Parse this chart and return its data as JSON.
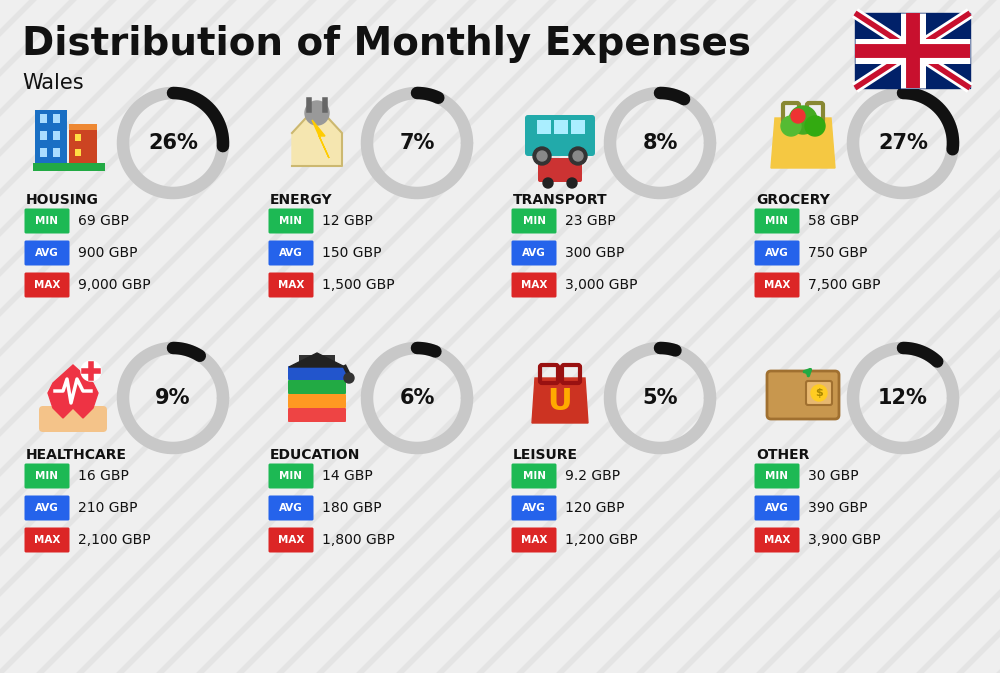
{
  "title": "Distribution of Monthly Expenses",
  "subtitle": "Wales",
  "background_color": "#efefef",
  "categories": [
    {
      "name": "HOUSING",
      "percent": 26,
      "min": "69 GBP",
      "avg": "900 GBP",
      "max": "9,000 GBP",
      "col": 0,
      "row": 0
    },
    {
      "name": "ENERGY",
      "percent": 7,
      "min": "12 GBP",
      "avg": "150 GBP",
      "max": "1,500 GBP",
      "col": 1,
      "row": 0
    },
    {
      "name": "TRANSPORT",
      "percent": 8,
      "min": "23 GBP",
      "avg": "300 GBP",
      "max": "3,000 GBP",
      "col": 2,
      "row": 0
    },
    {
      "name": "GROCERY",
      "percent": 27,
      "min": "58 GBP",
      "avg": "750 GBP",
      "max": "7,500 GBP",
      "col": 3,
      "row": 0
    },
    {
      "name": "HEALTHCARE",
      "percent": 9,
      "min": "16 GBP",
      "avg": "210 GBP",
      "max": "2,100 GBP",
      "col": 0,
      "row": 1
    },
    {
      "name": "EDUCATION",
      "percent": 6,
      "min": "14 GBP",
      "avg": "180 GBP",
      "max": "1,800 GBP",
      "col": 1,
      "row": 1
    },
    {
      "name": "LEISURE",
      "percent": 5,
      "min": "9.2 GBP",
      "avg": "120 GBP",
      "max": "1,200 GBP",
      "col": 2,
      "row": 1
    },
    {
      "name": "OTHER",
      "percent": 12,
      "min": "30 GBP",
      "avg": "390 GBP",
      "max": "3,900 GBP",
      "col": 3,
      "row": 1
    }
  ],
  "min_color": "#1db954",
  "avg_color": "#2563eb",
  "max_color": "#dc2626",
  "arc_bg_color": "#c8c8c8",
  "arc_fg_color": "#111111",
  "text_color": "#111111",
  "stripe_color": "#e0e0e0",
  "title_fontsize": 28,
  "subtitle_fontsize": 15,
  "cat_name_fontsize": 10,
  "pct_fontsize": 15,
  "val_fontsize": 10,
  "badge_fontsize": 7.5
}
